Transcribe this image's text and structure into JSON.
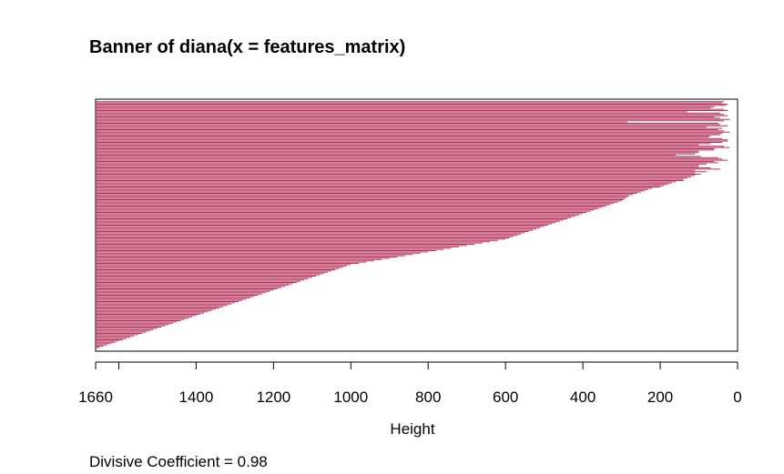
{
  "chart_data": {
    "type": "bar",
    "title": "Banner of  diana(x = features_matrix)",
    "xlabel": "Height",
    "ylabel": "",
    "orientation": "horizontal",
    "x_reversed": true,
    "xlim": [
      1660,
      0
    ],
    "ticks": [
      {
        "value": 1660,
        "label": "1660"
      },
      {
        "value": 1600,
        "label": ""
      },
      {
        "value": 1400,
        "label": "1400"
      },
      {
        "value": 1200,
        "label": "1200"
      },
      {
        "value": 1000,
        "label": "1000"
      },
      {
        "value": 800,
        "label": "800"
      },
      {
        "value": 600,
        "label": "600"
      },
      {
        "value": 400,
        "label": "400"
      },
      {
        "value": 200,
        "label": "200"
      },
      {
        "value": 0,
        "label": "0"
      }
    ],
    "bar_color": "#b5345a",
    "bar_heights": [
      35,
      40,
      25,
      30,
      60,
      70,
      35,
      25,
      130,
      45,
      35,
      25,
      60,
      45,
      20,
      35,
      285,
      50,
      45,
      25,
      80,
      40,
      50,
      35,
      20,
      40,
      45,
      70,
      75,
      40,
      25,
      25,
      40,
      70,
      100,
      35,
      20,
      60,
      60,
      100,
      100,
      110,
      160,
      95,
      50,
      40,
      25,
      60,
      50,
      80,
      100,
      100,
      70,
      45,
      110,
      80,
      110,
      95,
      110,
      120,
      130,
      140,
      140,
      160,
      170,
      180,
      190,
      200,
      220,
      230,
      240,
      250,
      260,
      270,
      280,
      285,
      290,
      295,
      300,
      310,
      320,
      330,
      340,
      350,
      360,
      370,
      380,
      390,
      400,
      410,
      420,
      430,
      440,
      450,
      460,
      470,
      480,
      490,
      500,
      510,
      520,
      530,
      540,
      550,
      560,
      570,
      580,
      590,
      600,
      620,
      640,
      660,
      680,
      700,
      720,
      740,
      760,
      780,
      800,
      820,
      840,
      860,
      880,
      900,
      920,
      940,
      960,
      980,
      1000,
      1010,
      1020,
      1030,
      1040,
      1050,
      1060,
      1070,
      1080,
      1090,
      1100,
      1110,
      1120,
      1130,
      1140,
      1150,
      1160,
      1170,
      1180,
      1190,
      1200,
      1210,
      1220,
      1230,
      1240,
      1250,
      1260,
      1270,
      1280,
      1290,
      1300,
      1310,
      1320,
      1330,
      1340,
      1350,
      1360,
      1370,
      1380,
      1390,
      1400,
      1410,
      1420,
      1430,
      1440,
      1450,
      1460,
      1470,
      1480,
      1490,
      1500,
      1510,
      1520,
      1530,
      1540,
      1550,
      1560,
      1570,
      1580,
      1590,
      1600,
      1610,
      1620,
      1630,
      1640,
      1650,
      1660
    ],
    "divisive_coefficient_label": "Divisive Coefficient =  0.98"
  }
}
